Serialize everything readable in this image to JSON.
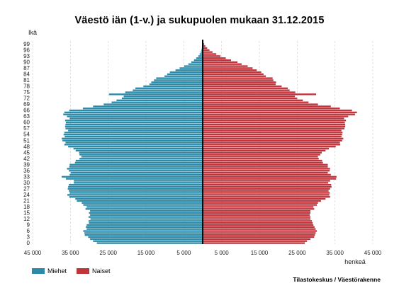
{
  "chart_data": {
    "type": "bar",
    "orientation": "population-pyramid",
    "title": "Väestö iän (1-v.) ja sukupuolen mukaan 31.12.2015",
    "ylabel": "Ikä",
    "xlabel": "henkeä",
    "source": "Tilastokeskus / Väestörakenne",
    "xlim": [
      -45000,
      45000
    ],
    "x_ticks": [
      -45000,
      -35000,
      -25000,
      -15000,
      -5000,
      5000,
      15000,
      25000,
      35000,
      45000
    ],
    "x_tick_labels": [
      "45 000",
      "35 000",
      "25 000",
      "15 000",
      "5 000",
      "5 000",
      "15 000",
      "25 000",
      "35 000",
      "45 000"
    ],
    "y_tick_labels": [
      "0",
      "3",
      "6",
      "9",
      "12",
      "15",
      "18",
      "21",
      "24",
      "27",
      "30",
      "33",
      "36",
      "39",
      "42",
      "45",
      "48",
      "51",
      "54",
      "57",
      "60",
      "63",
      "66",
      "69",
      "72",
      "75",
      "78",
      "81",
      "84",
      "87",
      "90",
      "93",
      "96",
      "99"
    ],
    "legend_position": "bottom-left",
    "colors": {
      "male": "#2b8aa8",
      "female": "#c0343b",
      "center_line": "#000000"
    },
    "categories": [
      "0",
      "1",
      "2",
      "3",
      "4",
      "5",
      "6",
      "7",
      "8",
      "9",
      "10",
      "11",
      "12",
      "13",
      "14",
      "15",
      "16",
      "17",
      "18",
      "19",
      "20",
      "21",
      "22",
      "23",
      "24",
      "25",
      "26",
      "27",
      "28",
      "29",
      "30",
      "31",
      "32",
      "33",
      "34",
      "35",
      "36",
      "37",
      "38",
      "39",
      "40",
      "41",
      "42",
      "43",
      "44",
      "45",
      "46",
      "47",
      "48",
      "49",
      "50",
      "51",
      "52",
      "53",
      "54",
      "55",
      "56",
      "57",
      "58",
      "59",
      "60",
      "61",
      "62",
      "63",
      "64",
      "65",
      "66",
      "67",
      "68",
      "69",
      "70",
      "71",
      "72",
      "73",
      "74",
      "75",
      "76",
      "77",
      "78",
      "79",
      "80",
      "81",
      "82",
      "83",
      "84",
      "85",
      "86",
      "87",
      "88",
      "89",
      "90",
      "91",
      "92",
      "93",
      "94",
      "95",
      "96",
      "97",
      "98",
      "99",
      "100"
    ],
    "series": [
      {
        "name": "Miehet",
        "values": [
          28000,
          29000,
          29800,
          30300,
          31200,
          31300,
          31600,
          30700,
          30900,
          30700,
          30100,
          30200,
          29700,
          30200,
          29800,
          30100,
          29800,
          31000,
          30700,
          31600,
          32000,
          33300,
          33700,
          35300,
          35800,
          35200,
          35400,
          35700,
          35600,
          35400,
          34100,
          34100,
          36200,
          37300,
          35200,
          34900,
          35400,
          35900,
          35300,
          35200,
          33800,
          33600,
          32600,
          32100,
          32600,
          32700,
          33600,
          34200,
          35600,
          36600,
          36300,
          37100,
          37300,
          36500,
          36800,
          36600,
          35600,
          36300,
          36400,
          36300,
          36200,
          36400,
          35200,
          35900,
          36900,
          36600,
          35300,
          31700,
          29000,
          26200,
          24100,
          22800,
          21400,
          20900,
          24800,
          20500,
          18500,
          17800,
          15700,
          14100,
          13600,
          12900,
          12300,
          10100,
          9400,
          8700,
          7200,
          6100,
          4900,
          3800,
          3000,
          2300,
          1700,
          1150,
          800,
          520,
          350,
          220,
          140,
          80,
          40
        ]
      },
      {
        "name": "Naiset",
        "values": [
          27000,
          27600,
          28500,
          29500,
          29700,
          29900,
          30200,
          29900,
          29600,
          29300,
          29100,
          28900,
          28500,
          28500,
          28300,
          28500,
          28500,
          29500,
          29300,
          30200,
          30500,
          31300,
          32500,
          33700,
          33500,
          33600,
          33300,
          33700,
          34100,
          34000,
          33200,
          33700,
          35300,
          35400,
          33900,
          33100,
          33600,
          33700,
          33100,
          33100,
          31800,
          31600,
          30700,
          30500,
          31100,
          31500,
          32500,
          33400,
          35200,
          36400,
          36300,
          36900,
          37200,
          36700,
          36900,
          37000,
          36700,
          37500,
          37700,
          37700,
          37600,
          37900,
          37400,
          38500,
          40300,
          40800,
          39500,
          36300,
          33900,
          30500,
          28000,
          26500,
          25000,
          24400,
          30000,
          24500,
          23000,
          22500,
          20900,
          19300,
          19400,
          18700,
          18500,
          16700,
          16100,
          15500,
          14300,
          13200,
          11900,
          10300,
          9200,
          7500,
          6100,
          4700,
          3600,
          2600,
          1800,
          1200,
          700,
          400,
          200
        ]
      }
    ]
  }
}
